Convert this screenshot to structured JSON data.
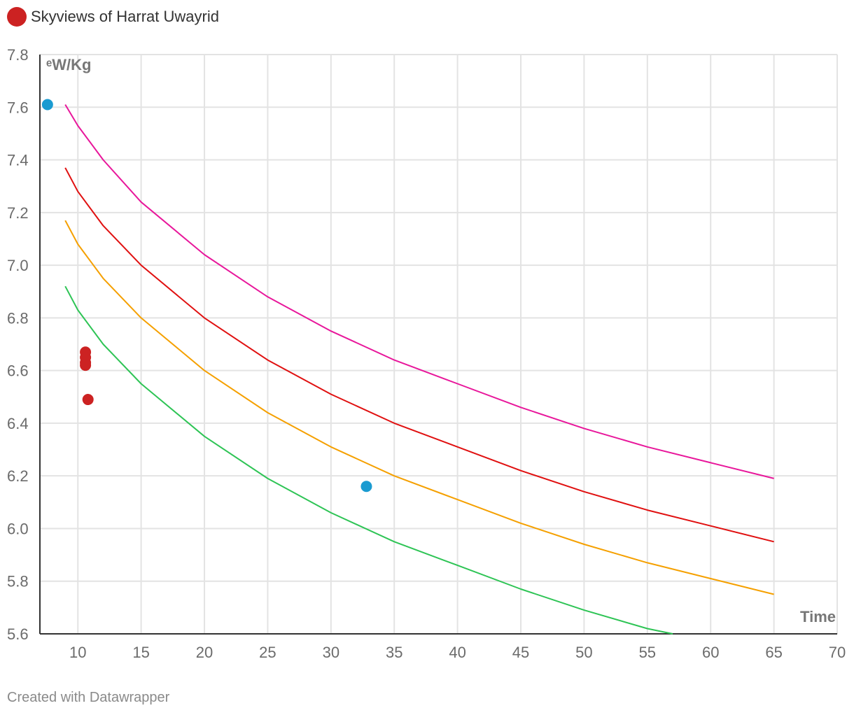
{
  "legend": {
    "label": "Skyviews of Harrat Uwayrid",
    "color": "#cc2222"
  },
  "footer": {
    "credit": "Created with Datawrapper"
  },
  "chart_data": {
    "type": "scatter",
    "xlabel": "Time",
    "ylabel": "ᵉW/Kg",
    "xlim": [
      7,
      70
    ],
    "ylim": [
      5.6,
      7.8
    ],
    "x_ticks": [
      10,
      15,
      20,
      25,
      30,
      35,
      40,
      45,
      50,
      55,
      60,
      65,
      70
    ],
    "y_ticks": [
      5.6,
      5.8,
      6.0,
      6.2,
      6.4,
      6.6,
      6.8,
      7.0,
      7.2,
      7.4,
      7.6,
      7.8
    ],
    "grid": true,
    "legend_position": "top-left",
    "lines": [
      {
        "color": "#e8179b",
        "x": [
          9,
          10,
          12,
          15,
          20,
          25,
          30,
          35,
          40,
          45,
          50,
          55,
          60,
          65
        ],
        "y": [
          7.61,
          7.53,
          7.4,
          7.24,
          7.04,
          6.88,
          6.75,
          6.64,
          6.55,
          6.46,
          6.38,
          6.31,
          6.25,
          6.19
        ]
      },
      {
        "color": "#e01010",
        "x": [
          9,
          10,
          12,
          15,
          20,
          25,
          30,
          35,
          40,
          45,
          50,
          55,
          60,
          65
        ],
        "y": [
          7.37,
          7.28,
          7.15,
          7.0,
          6.8,
          6.64,
          6.51,
          6.4,
          6.31,
          6.22,
          6.14,
          6.07,
          6.01,
          5.95
        ]
      },
      {
        "color": "#f5a000",
        "x": [
          9,
          10,
          12,
          15,
          20,
          25,
          30,
          35,
          40,
          45,
          50,
          55,
          60,
          65
        ],
        "y": [
          7.17,
          7.08,
          6.95,
          6.8,
          6.6,
          6.44,
          6.31,
          6.2,
          6.11,
          6.02,
          5.94,
          5.87,
          5.81,
          5.75
        ]
      },
      {
        "color": "#2ec455",
        "x": [
          9,
          10,
          12,
          15,
          20,
          25,
          30,
          35,
          40,
          45,
          50,
          55,
          57
        ],
        "y": [
          6.92,
          6.83,
          6.7,
          6.55,
          6.35,
          6.19,
          6.06,
          5.95,
          5.86,
          5.77,
          5.69,
          5.62,
          5.6
        ]
      }
    ],
    "points": [
      {
        "x": 7.6,
        "y": 7.61,
        "color": "#1a9bd1"
      },
      {
        "x": 32.8,
        "y": 6.16,
        "color": "#1a9bd1"
      },
      {
        "x": 10.6,
        "y": 6.67,
        "color": "#cc2222"
      },
      {
        "x": 10.6,
        "y": 6.65,
        "color": "#cc2222"
      },
      {
        "x": 10.6,
        "y": 6.63,
        "color": "#cc2222"
      },
      {
        "x": 10.6,
        "y": 6.62,
        "color": "#cc2222"
      },
      {
        "x": 10.8,
        "y": 6.49,
        "color": "#cc2222"
      }
    ]
  }
}
